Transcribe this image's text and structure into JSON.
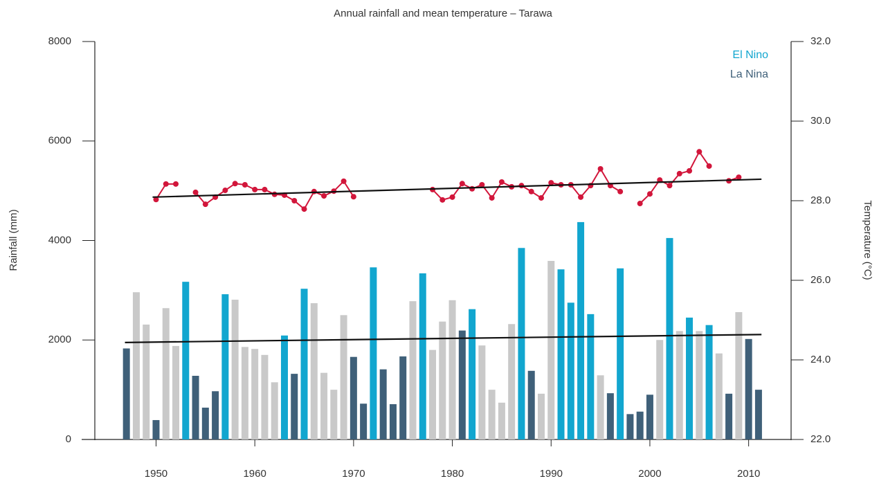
{
  "chart_data": {
    "type": "bar-line",
    "title": "Annual rainfall and mean temperature – Tarawa",
    "ylabel": "Rainfall (mm)",
    "y2label": "Temperature (°C)",
    "x": [
      1947,
      1948,
      1949,
      1950,
      1951,
      1952,
      1953,
      1954,
      1955,
      1956,
      1957,
      1958,
      1959,
      1960,
      1961,
      1962,
      1963,
      1964,
      1965,
      1966,
      1967,
      1968,
      1969,
      1970,
      1971,
      1972,
      1973,
      1974,
      1975,
      1976,
      1977,
      1978,
      1979,
      1980,
      1981,
      1982,
      1983,
      1984,
      1985,
      1986,
      1987,
      1988,
      1989,
      1990,
      1991,
      1992,
      1993,
      1994,
      1995,
      1996,
      1997,
      1998,
      1999,
      2000,
      2001,
      2002,
      2003,
      2004,
      2005,
      2006,
      2007,
      2008,
      2009,
      2010,
      2011
    ],
    "xlim": [
      1943.8,
      2014.3
    ],
    "xticks": [
      1950,
      1960,
      1970,
      1980,
      1990,
      2000,
      2010
    ],
    "ylim": [
      0,
      8000
    ],
    "yticks": [
      0,
      2000,
      4000,
      6000,
      8000
    ],
    "y2lim": [
      22,
      32
    ],
    "y2ticks": [
      {
        "value": 22,
        "label": "22.0"
      },
      {
        "value": 24,
        "label": "24.0"
      },
      {
        "value": 26,
        "label": "26.0"
      },
      {
        "value": 28,
        "label": "28.0"
      },
      {
        "value": 30,
        "label": "30.0"
      },
      {
        "value": 32,
        "label": "32.0"
      }
    ],
    "series": [
      {
        "kind": "bar",
        "values": [
          1830,
          2960,
          2310,
          390,
          2640,
          1880,
          3170,
          1280,
          640,
          970,
          2920,
          2810,
          1860,
          1820,
          1700,
          1150,
          2090,
          1320,
          3030,
          2740,
          1340,
          1000,
          2500,
          1660,
          720,
          3460,
          1410,
          710,
          1670,
          2780,
          3340,
          1800,
          2370,
          2800,
          2190,
          2620,
          1890,
          1000,
          740,
          2320,
          3850,
          1380,
          920,
          3590,
          3420,
          2750,
          4370,
          2520,
          1290,
          930,
          3440,
          510,
          560,
          900,
          2000,
          4050,
          2180,
          2450,
          2180,
          2300,
          1730,
          920,
          2560,
          2020,
          1000
        ],
        "colors": [
          "#3f6079",
          "#c9c9c9",
          "#c9c9c9",
          "#3f6079",
          "#c9c9c9",
          "#c9c9c9",
          "#12a6cf",
          "#3f6079",
          "#3f6079",
          "#3f6079",
          "#12a6cf",
          "#c9c9c9",
          "#c9c9c9",
          "#c9c9c9",
          "#c9c9c9",
          "#c9c9c9",
          "#12a6cf",
          "#3f6079",
          "#12a6cf",
          "#c9c9c9",
          "#c9c9c9",
          "#c9c9c9",
          "#c9c9c9",
          "#3f6079",
          "#3f6079",
          "#12a6cf",
          "#3f6079",
          "#3f6079",
          "#3f6079",
          "#c9c9c9",
          "#12a6cf",
          "#c9c9c9",
          "#c9c9c9",
          "#c9c9c9",
          "#3f6079",
          "#12a6cf",
          "#c9c9c9",
          "#c9c9c9",
          "#c9c9c9",
          "#c9c9c9",
          "#12a6cf",
          "#3f6079",
          "#c9c9c9",
          "#c9c9c9",
          "#12a6cf",
          "#12a6cf",
          "#12a6cf",
          "#12a6cf",
          "#c9c9c9",
          "#3f6079",
          "#12a6cf",
          "#3f6079",
          "#3f6079",
          "#3f6079",
          "#c9c9c9",
          "#12a6cf",
          "#c9c9c9",
          "#12a6cf",
          "#c9c9c9",
          "#12a6cf",
          "#c9c9c9",
          "#3f6079",
          "#c9c9c9",
          "#3f6079",
          "#3f6079"
        ]
      },
      {
        "kind": "line",
        "axis": "y2",
        "color": "#d2163b",
        "values": [
          null,
          null,
          null,
          28.03,
          28.42,
          28.42,
          null,
          28.21,
          27.91,
          28.09,
          28.26,
          28.43,
          28.4,
          28.28,
          28.28,
          28.16,
          28.14,
          28.0,
          27.79,
          28.23,
          28.12,
          28.24,
          28.49,
          28.1,
          null,
          null,
          null,
          null,
          null,
          null,
          null,
          28.28,
          28.02,
          28.09,
          28.43,
          28.3,
          28.4,
          28.07,
          28.47,
          28.35,
          28.38,
          28.23,
          28.07,
          28.45,
          28.4,
          28.4,
          28.09,
          28.38,
          28.8,
          28.38,
          28.23,
          null,
          27.93,
          28.17,
          28.52,
          28.38,
          28.68,
          28.75,
          29.23,
          28.87,
          null,
          28.5,
          28.59,
          null,
          null
        ]
      }
    ],
    "trend_lines": [
      {
        "color": "#111111",
        "x": [
          1946.85,
          2011.3
        ],
        "values": [
          1950,
          2110
        ]
      },
      {
        "color": "#111111",
        "axis": "y2",
        "x": [
          1949.65,
          2011.3
        ],
        "values": [
          28.09,
          28.54
        ]
      }
    ],
    "legend": [
      {
        "name": "El Nino",
        "color": "#12a6cf"
      },
      {
        "name": "La Nina",
        "color": "#3f6079"
      }
    ]
  }
}
